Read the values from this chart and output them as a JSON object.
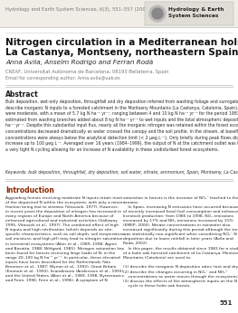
{
  "journal_header": "Hydrology and Earth System Sciences, 6(3), 551–557 (2002)  ©  EGS",
  "journal_name": "Hydrology & Earth\nSystem Sciences",
  "title_line1": "Nitrogen circulation in a Mediterranean holm oak forest,",
  "title_line2": "La Castanya, Montseny, northeastern Spain",
  "authors": "Anna Avila, Anselm Rodrigo and Ferran Rodà",
  "affiliation": "CREAF, Universitat Autònoma de Barcelona, 08193 Bellaterra, Spain",
  "email": "Email for corresponding author: Anna.avila@uab.es",
  "abstract_title": "Abstract",
  "abstract_text": "Bulk deposition, wet-only deposition, throughfall and dry deposition inferred from washing foliage and surrogate surfaces were used to\ndescribe inorganic N inputs to a forested catchment in the Montseny Mountains (La Castanya, Catalonia, Spain). Bulk inputs of inorganic N\nwere moderate, with a mean of 5.7 kg N ha⁻¹ yr⁻¹, ranging between 4 and 10 kg N ha⁻¹ yr⁻¹ for the period 1983 to 1988. Dry deposition fluxes\nestimated from washing branches added about 8 kg N ha⁻¹ yr⁻¹ to wet inputs and the total atmospheric deposition was estimated at 13 kg N\nha⁻¹ yr⁻¹. Despite this substantial input flux, nearly all the inorganic nitrogen was retained within the forest ecosystem. NH₄⁺ and NO₃⁻\nconcentrations decreased dramatically as water crossed the canopy and the soil profile. In the stream, at baseflow conditions, NH₄⁺ and NO₃⁻\nconcentrations were always below the analytical detection limit (< 2 μeg L⁻¹). Only briefly during peak flows did NO₃⁻ concentrations\nincrease up to 100 μeg L⁻¹. Averaged over 16 years (1984–1999), the output of N at the catchment outlet was 0.03 kg N ha⁻¹ yr⁻¹. This indicates\na very tight N cycling allowing for an increase of N availability in these undisturbed forest ecosystems.",
  "keywords": "Keywords: bulk deposition, throughfall, dry deposition, soil water, nitrate, ammonium, Spain, Montseny, La Castanya.",
  "intro_title": "Introduction",
  "intro_left": "Aggrading forests receiving moderate N inputs retain most\nof the deposited N within the ecosystem, with only a minor\nfraction being lost to streams (Vitousek, 1977). However,\nin recent years the deposition of nitrogen has increased in\nmany regions of Europe and North America because of\nenhanced agricultural and industrial activities (Galloway\n1995, Vitousek et al., 1997). The combined effect of high\nN inputs and high nitrification (which depends on site-\nspecific characteristics, such as soil depth, soil temperature,\nsoil moisture, and high pH) may lead to nitrogen saturation\nin terrestrial ecosystems (Aber et al., 1989, 1998; Agren\nand Bosatta, 1988; Nihlgard, 1985). Nitrogen saturation has\nbeen found for forests receiving large loads of N, in the\nrange 20–100 kg N ha⁻¹ yr⁻¹. In particular, these elevated\ninputs have been described for the Netherlands (Van\nBreemen et al., 1987; Wynan et al., 1992), Great Britain\n(Emmett et al., 1993), Scandinavia (Andersson et al., 1993)\nand the United States (Aber et al., 1989, 1998; Bytnerowicz\nand Fenn, 1996; Fenn et al., 1996). A symptom of N",
  "intro_right": "saturation in forests is the increase of NO₃⁻ leached to the\nstreams.\n    In Spain, increasing N emissions have occurred because\nof recently increased fossil fuel consumption and enhanced\nlivestock production: from 1985 to 1998, NOₓ emissions\nincreased by 17% and NH₃ emissions increased by 31%\n(EMEP, 2000). Nitrate concentrations in rainwater also\nincreased significantly during this period although the trend\nwas statistically non-significant when considering NO₃⁻-N\ndeposition due to lower rainfall in later years (Avila and\nRodà, 2002).\n    In this paper, the results obtained since 1983 for a study\nof a holm oak forested catchment of La Castanya, Montseny\nMountains (Catalonia) are used to:\n\n(1) describe the inorganic N deposition rates (wet and dry);\n(2) describe the changes occurring in NO₃⁻ and NH₄⁺\n    concentrations as water moves through the ecosystem;\n(3) discuss the effects of the atmospheric inputs on the N\n    cycle in these holm oak forests.",
  "page_number": "551",
  "bg_color": "#f0ede6",
  "white_color": "#ffffff",
  "text_color": "#2a2a2a",
  "title_color": "#111111",
  "header_color": "#777777",
  "section_color": "#1a1a1a",
  "intro_color": "#8B2500"
}
